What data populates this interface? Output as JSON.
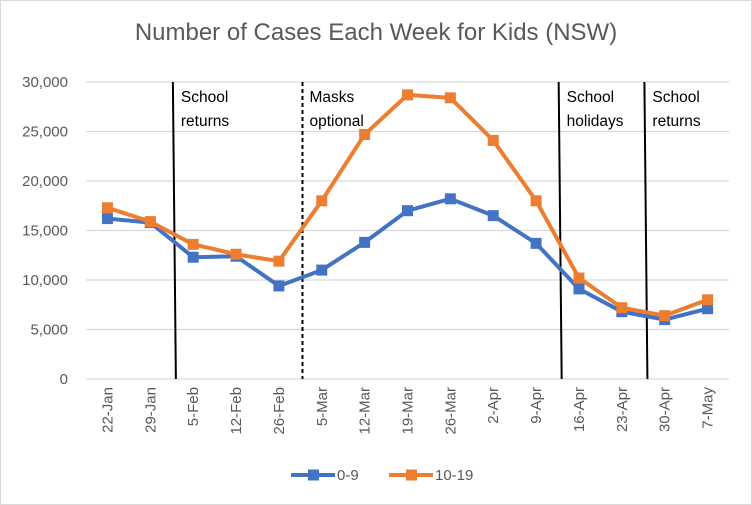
{
  "chart_data": {
    "type": "line",
    "title": "Number of Cases Each Week for Kids (NSW)",
    "xlabel": "",
    "ylabel": "",
    "ylim": [
      0,
      30000
    ],
    "yticks": [
      0,
      5000,
      10000,
      15000,
      20000,
      25000,
      30000
    ],
    "ytick_labels": [
      "0",
      "5,000",
      "10,000",
      "15,000",
      "20,000",
      "25,000",
      "30,000"
    ],
    "grid": true,
    "legend_position": "bottom",
    "categories": [
      "22-Jan",
      "29-Jan",
      "5-Feb",
      "12-Feb",
      "26-Feb",
      "5-Mar",
      "12-Mar",
      "19-Mar",
      "26-Mar",
      "2-Apr",
      "9-Apr",
      "16-Apr",
      "23-Apr",
      "30-Apr",
      "7-May"
    ],
    "series": [
      {
        "name": "0-9",
        "color": "#4472c4",
        "values": [
          16200,
          15800,
          12300,
          12400,
          9400,
          11000,
          13800,
          17000,
          18200,
          16500,
          13700,
          9100,
          6800,
          6000,
          7100
        ]
      },
      {
        "name": "10-19",
        "color": "#ed7d31",
        "values": [
          17300,
          15900,
          13600,
          12600,
          11900,
          18000,
          24700,
          28700,
          28400,
          24100,
          18000,
          10200,
          7200,
          6400,
          8000
        ]
      }
    ],
    "annotations": [
      {
        "label_line1": "School",
        "label_line2": "returns",
        "between": [
          "29-Jan",
          "5-Feb"
        ],
        "position": 1.2,
        "style": "solid"
      },
      {
        "label_line1": "Masks",
        "label_line2": "optional",
        "between": [
          "26-Feb",
          "5-Mar"
        ],
        "position": 4.2,
        "style": "dashed"
      },
      {
        "label_line1": "School",
        "label_line2": "holidays",
        "between": [
          "9-Apr",
          "16-Apr"
        ],
        "position": 10.2,
        "style": "solid"
      },
      {
        "label_line1": "School",
        "label_line2": "returns",
        "between": [
          "23-Apr",
          "30-Apr"
        ],
        "position": 12.2,
        "style": "solid"
      }
    ]
  }
}
